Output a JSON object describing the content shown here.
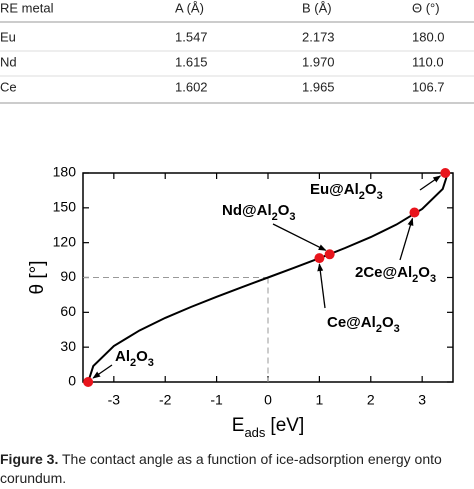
{
  "table": {
    "header": [
      "RE metal",
      "A (Å)",
      "B (Å)",
      "Θ (°)"
    ],
    "rows": [
      [
        "Eu",
        "1.547",
        "2.173",
        "180.0"
      ],
      [
        "Nd",
        "1.615",
        "1.970",
        "110.0"
      ],
      [
        "Ce",
        "1.602",
        "1.965",
        "106.7"
      ]
    ]
  },
  "chart_data": {
    "type": "line",
    "xlabel": {
      "main": "E",
      "sub": "ads",
      "unit": "[eV]"
    },
    "ylabel": "θ [°]",
    "xlim": [
      -3.6,
      3.6
    ],
    "ylim": [
      0,
      180
    ],
    "xticks": [
      -3,
      -2,
      -1,
      0,
      1,
      2,
      3
    ],
    "yticks": [
      0,
      30,
      60,
      90,
      120,
      150,
      180
    ],
    "series": [
      {
        "color": "#000000",
        "x": [
          -3.5,
          -3.4,
          -3,
          -2.5,
          -2,
          -1.5,
          -1,
          -0.5,
          0,
          0.5,
          1,
          1.5,
          2,
          2.5,
          3,
          3.4,
          3.5
        ],
        "values": [
          0,
          13.7,
          31.0,
          44.4,
          55.2,
          64.6,
          73.4,
          81.8,
          90,
          98.2,
          106.6,
          115.4,
          124.8,
          135.6,
          149.0,
          166.3,
          180
        ]
      }
    ],
    "points": {
      "color": "#e8141c",
      "labels": [
        "Al2O3",
        "Ce@Al2O3",
        "Nd@Al2O3",
        "2Ce@Al2O3",
        "Eu@Al2O3"
      ],
      "x": [
        -3.5,
        1.0,
        1.2,
        2.85,
        3.45
      ],
      "values": [
        0,
        106.7,
        110,
        146,
        180
      ]
    }
  },
  "caption": {
    "label": "Figure 3.",
    "text": "The contact angle as a function of ice-adsorption energy onto corundum."
  }
}
